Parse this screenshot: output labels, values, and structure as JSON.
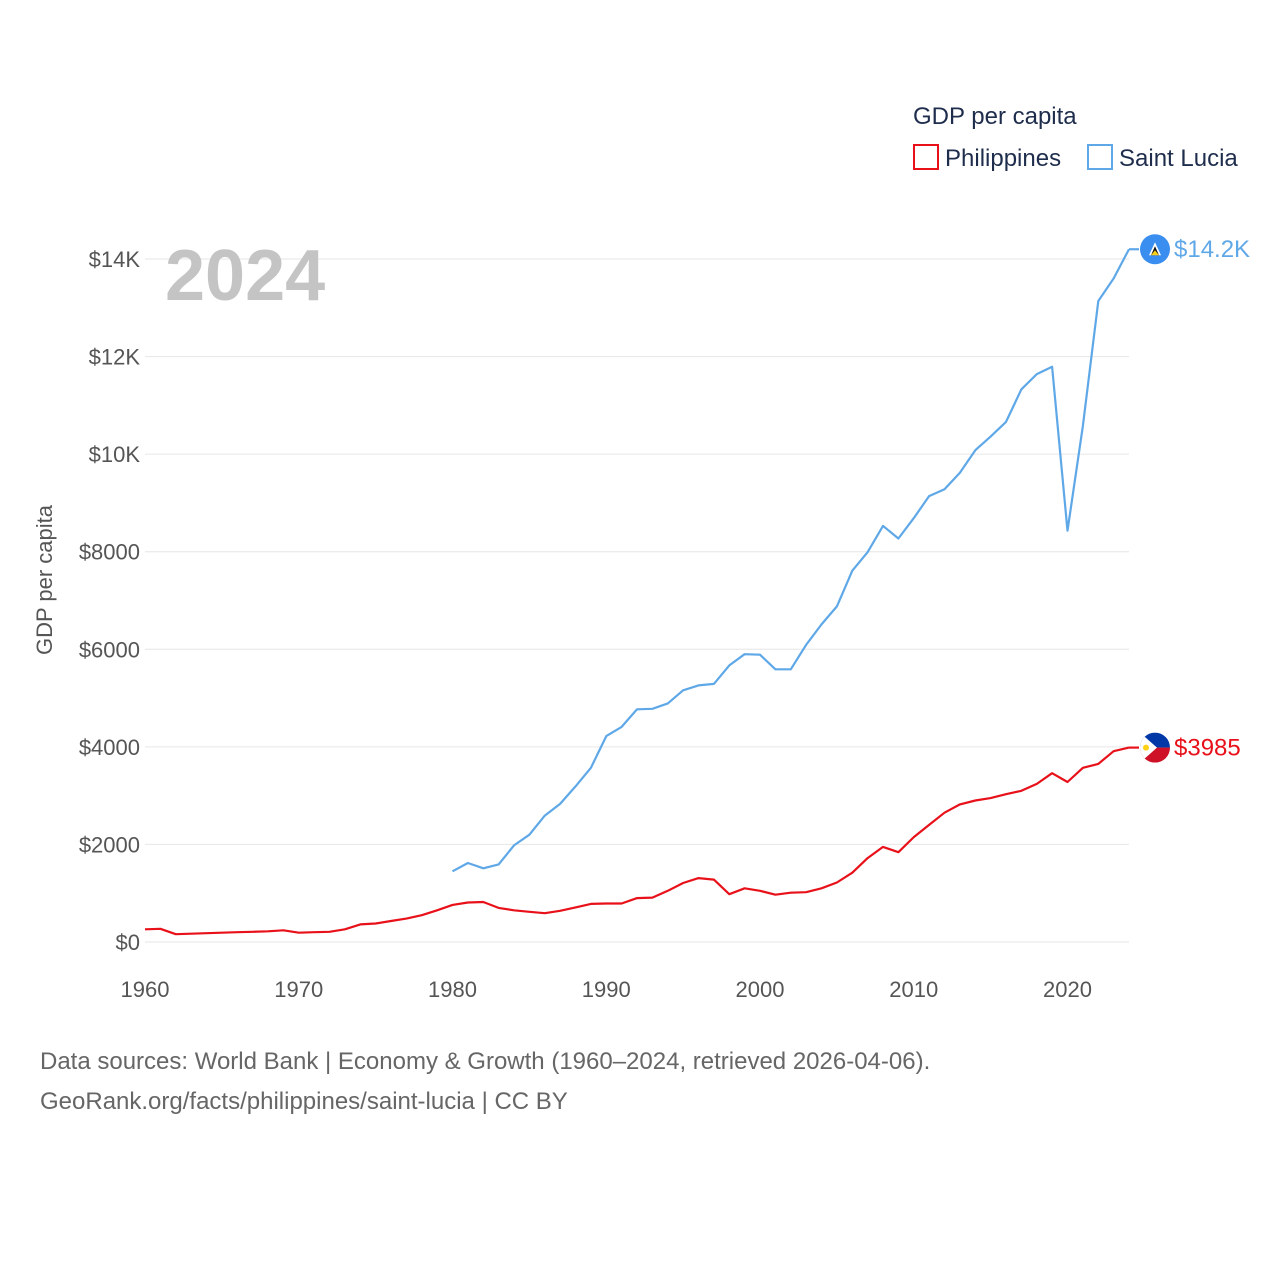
{
  "chart_data": {
    "type": "line",
    "title": "GDP per capita",
    "ylabel": "GDP per capita",
    "xlabel": "",
    "current_year": "2024",
    "xlim": [
      1960,
      2024
    ],
    "ylim": [
      0,
      14000
    ],
    "x_ticks": [
      1960,
      1970,
      1980,
      1990,
      2000,
      2010,
      2020
    ],
    "x_tick_labels": [
      "1960",
      "1970",
      "1980",
      "1990",
      "2000",
      "2010",
      "2020"
    ],
    "y_ticks": [
      0,
      2000,
      4000,
      6000,
      8000,
      10000,
      12000,
      14000
    ],
    "y_tick_labels": [
      "$0",
      "$2000",
      "$4000",
      "$6000",
      "$8000",
      "$10K",
      "$12K",
      "$14K"
    ],
    "grid": true,
    "legend_position": "top-right",
    "series": [
      {
        "name": "Philippines",
        "color": "#e8111a",
        "end_label": "$3985",
        "flag": "philippines-flag",
        "x": [
          1960,
          1961,
          1962,
          1963,
          1964,
          1965,
          1966,
          1967,
          1968,
          1969,
          1970,
          1971,
          1972,
          1973,
          1974,
          1975,
          1976,
          1977,
          1978,
          1979,
          1980,
          1981,
          1982,
          1983,
          1984,
          1985,
          1986,
          1987,
          1988,
          1989,
          1990,
          1991,
          1992,
          1993,
          1994,
          1995,
          1996,
          1997,
          1998,
          1999,
          2000,
          2001,
          2002,
          2003,
          2004,
          2005,
          2006,
          2007,
          2008,
          2009,
          2010,
          2011,
          2012,
          2013,
          2014,
          2015,
          2016,
          2017,
          2018,
          2019,
          2020,
          2021,
          2022,
          2023,
          2024
        ],
        "values": [
          260,
          270,
          160,
          170,
          180,
          190,
          200,
          210,
          220,
          240,
          190,
          200,
          210,
          260,
          360,
          380,
          430,
          480,
          550,
          650,
          760,
          810,
          820,
          700,
          650,
          620,
          590,
          640,
          710,
          780,
          790,
          790,
          900,
          910,
          1050,
          1210,
          1310,
          1280,
          980,
          1100,
          1050,
          970,
          1010,
          1020,
          1100,
          1220,
          1420,
          1720,
          1950,
          1840,
          2150,
          2400,
          2650,
          2820,
          2900,
          2950,
          3030,
          3100,
          3240,
          3460,
          3280,
          3570,
          3650,
          3910,
          3985
        ]
      },
      {
        "name": "Saint Lucia",
        "color": "#5fa8e8",
        "end_label": "$14.2K",
        "flag": "saint-lucia-flag",
        "x": [
          1980,
          1981,
          1982,
          1983,
          1984,
          1985,
          1986,
          1987,
          1988,
          1989,
          1990,
          1991,
          1992,
          1993,
          1994,
          1995,
          1996,
          1997,
          1998,
          1999,
          2000,
          2001,
          2002,
          2003,
          2004,
          2005,
          2006,
          2007,
          2008,
          2009,
          2010,
          2011,
          2012,
          2013,
          2014,
          2015,
          2016,
          2017,
          2018,
          2019,
          2020,
          2021,
          2022,
          2023,
          2024
        ],
        "values": [
          1450,
          1620,
          1510,
          1590,
          1980,
          2200,
          2590,
          2830,
          3190,
          3570,
          4220,
          4410,
          4770,
          4780,
          4890,
          5160,
          5260,
          5290,
          5670,
          5900,
          5890,
          5590,
          5590,
          6090,
          6510,
          6880,
          7610,
          7990,
          8530,
          8270,
          8690,
          9140,
          9280,
          9620,
          10080,
          10360,
          10660,
          11330,
          11640,
          11790,
          8430,
          10580,
          13140,
          13600,
          14200
        ]
      }
    ],
    "source_line1": "Data sources: World Bank | Economy & Growth (1960–2024, retrieved 2026-04-06).",
    "source_line2": "GeoRank.org/facts/philippines/saint-lucia | CC BY"
  }
}
